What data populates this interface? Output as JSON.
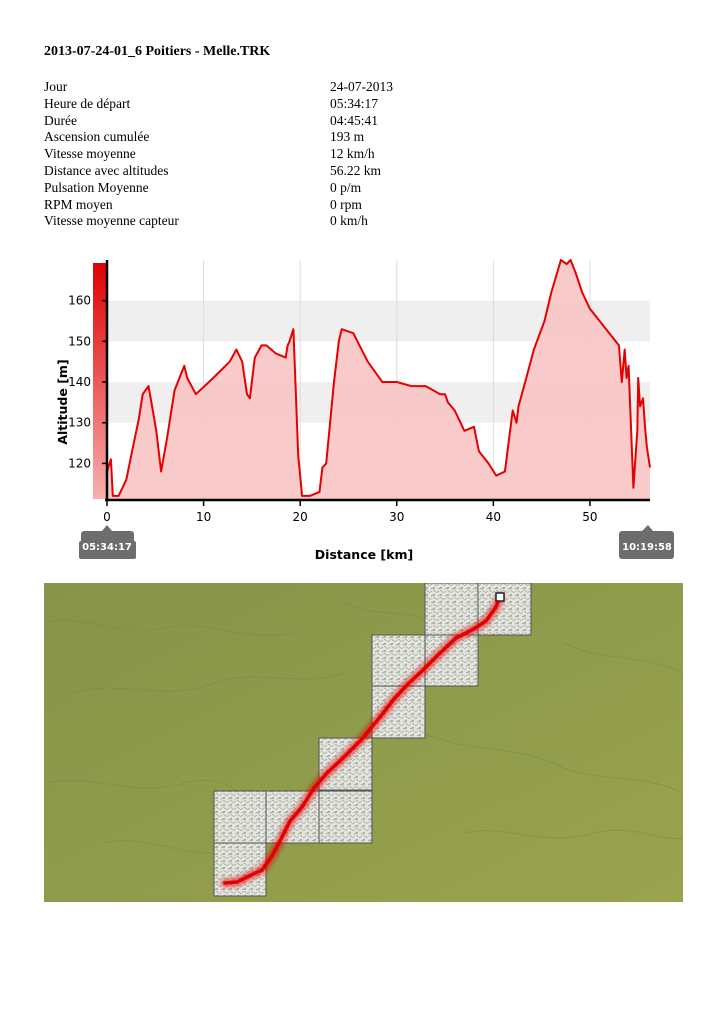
{
  "document": {
    "title": "2013-07-24-01_6 Poitiers - Melle.TRK"
  },
  "stats": [
    {
      "label": "Jour",
      "value": "24-07-2013"
    },
    {
      "label": "Heure de départ",
      "value": "05:34:17"
    },
    {
      "label": "Durée",
      "value": "04:45:41"
    },
    {
      "label": "Ascension cumulée",
      "value": "193 m"
    },
    {
      "label": "Vitesse moyenne",
      "value": "12 km/h"
    },
    {
      "label": "Distance avec altitudes",
      "value": "56.22 km"
    },
    {
      "label": "Pulsation Moyenne",
      "value": "0 p/m"
    },
    {
      "label": "RPM moyen",
      "value": "0 rpm"
    },
    {
      "label": "Vitesse moyenne capteur",
      "value": "0 km/h"
    }
  ],
  "chart_data": {
    "type": "area",
    "xlabel": "Distance [km]",
    "ylabel": "Altitude [m]",
    "xlim": [
      0,
      56.22
    ],
    "ylim": [
      111,
      170
    ],
    "xticks": [
      0,
      10,
      20,
      30,
      40,
      50
    ],
    "yticks": [
      120,
      130,
      140,
      150,
      160
    ],
    "start_time": "05:34:17",
    "end_time": "10:19:58",
    "colors": {
      "line": "#e60000",
      "fill": "#f7c4c4",
      "band": "#efefef"
    },
    "x": [
      0,
      0.4,
      0.6,
      1.2,
      2.0,
      2.6,
      3.3,
      3.7,
      4.3,
      4.6,
      5.1,
      5.6,
      6.2,
      7.0,
      8.0,
      8.3,
      9.2,
      11.0,
      12.7,
      13.4,
      14.0,
      14.5,
      14.8,
      15.3,
      16.0,
      16.5,
      17.5,
      18.5,
      18.7,
      18.9,
      19.3,
      19.8,
      20.2,
      21.0,
      22.0,
      22.3,
      22.7,
      23.5,
      24.0,
      24.3,
      25.5,
      27.0,
      28.5,
      29.5,
      30.0,
      31.5,
      33.0,
      34.5,
      35.0,
      35.3,
      36.0,
      37.0,
      38.0,
      38.5,
      39.5,
      40.3,
      41.2,
      42.0,
      42.4,
      42.6,
      43.3,
      44.2,
      45.3,
      46.0,
      47.0,
      47.6,
      48.0,
      48.5,
      49.2,
      50.0,
      51.0,
      53.0,
      53.3,
      53.6,
      53.8,
      54.0,
      54.2,
      54.5,
      54.9,
      55.0,
      55.2,
      55.5,
      55.7,
      55.9,
      56.22
    ],
    "y": [
      118,
      121,
      112,
      112,
      116,
      123,
      131,
      137,
      139,
      135,
      128,
      118,
      126,
      138,
      144,
      141,
      137,
      141,
      145,
      148,
      145,
      137,
      136,
      146,
      149,
      149,
      147,
      146,
      149,
      150,
      153,
      122,
      112,
      112,
      113,
      119,
      120,
      140,
      150,
      153,
      152,
      145,
      140,
      140,
      140,
      139,
      139,
      137,
      137,
      135,
      133,
      128,
      129,
      123,
      120,
      117,
      118,
      133,
      130,
      134,
      140,
      148,
      155,
      162,
      170,
      169,
      170,
      167,
      162,
      158,
      155,
      149,
      140,
      148,
      141,
      144,
      132,
      114,
      128,
      141,
      134,
      136,
      129,
      124,
      119
    ]
  },
  "map": {
    "colors": {
      "terrain": "#8c9a48",
      "tile": "#e7e7e2",
      "route": "#e40000"
    }
  }
}
